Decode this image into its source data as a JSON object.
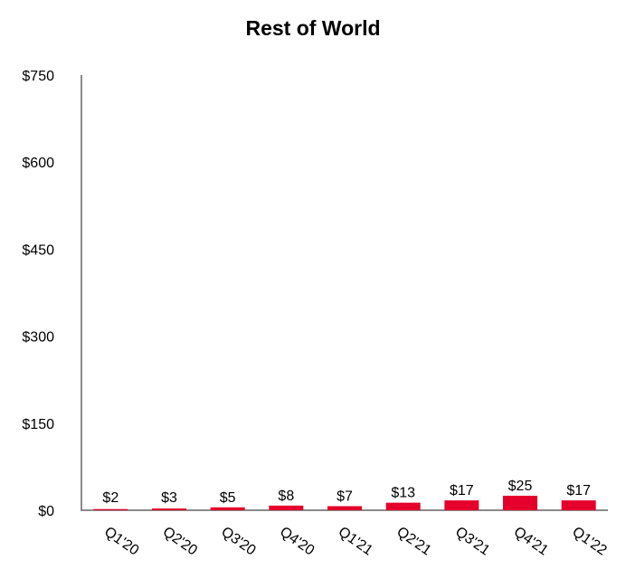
{
  "chart_data": {
    "type": "bar",
    "title": "Rest of World",
    "xlabel": "",
    "ylabel": "",
    "categories": [
      "Q1'20",
      "Q2'20",
      "Q3'20",
      "Q4'20",
      "Q1'21",
      "Q2'21",
      "Q3'21",
      "Q4'21",
      "Q1'22"
    ],
    "values": [
      2,
      3,
      5,
      8,
      7,
      13,
      17,
      25,
      17
    ],
    "data_labels": [
      "$2",
      "$3",
      "$5",
      "$8",
      "$7",
      "$13",
      "$17",
      "$25",
      "$17"
    ],
    "ylim": [
      0,
      750
    ],
    "yticks": [
      0,
      150,
      300,
      450,
      600,
      750
    ],
    "ytick_labels": [
      "$0",
      "$150",
      "$300",
      "$450",
      "$600",
      "$750"
    ],
    "grid": false,
    "legend": "none",
    "colors": {
      "bar": "#e4002b",
      "axis": "#8a8a8a",
      "text": "#000000"
    }
  }
}
